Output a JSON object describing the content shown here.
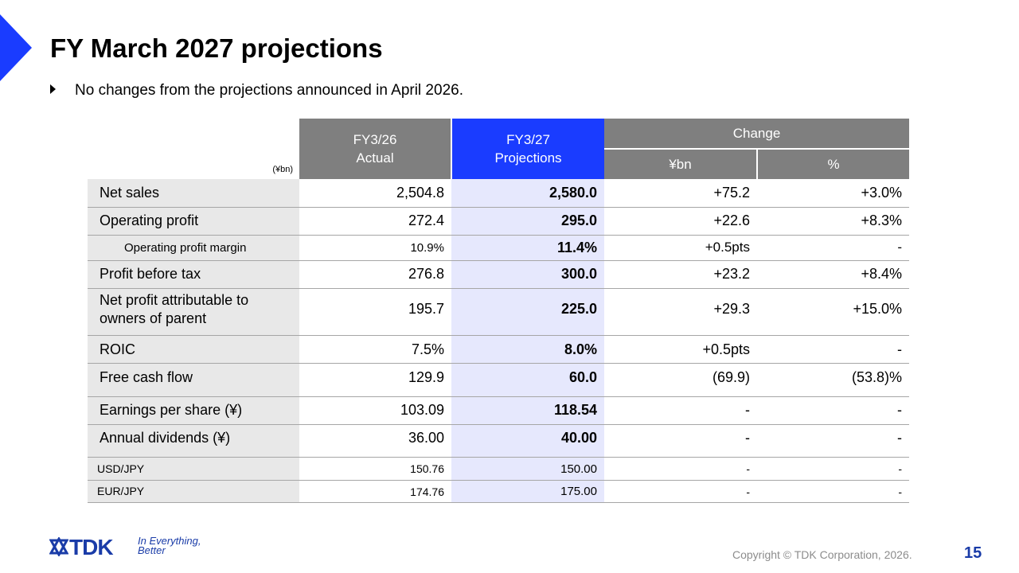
{
  "title": "FY March 2027 projections",
  "bullet": "No changes from the projections announced in April 2026.",
  "table": {
    "unit": "(¥bn)",
    "col_actual": [
      "FY3/26",
      "Actual"
    ],
    "col_proj": [
      "FY3/27",
      "Projections"
    ],
    "col_change": "Change",
    "col_change_bn": "¥bn",
    "col_change_pct": "%",
    "rows": [
      {
        "label": "Net sales",
        "actual": "2,504.8",
        "proj": "2,580.0",
        "chg": "+75.2",
        "pct": "+3.0%"
      },
      {
        "label": "Operating profit",
        "actual": "272.4",
        "proj": "295.0",
        "chg": "+22.6",
        "pct": "+8.3%"
      },
      {
        "label": "Operating profit margin",
        "actual": "10.9%",
        "proj": "11.4%",
        "chg": "+0.5pts",
        "pct": "-"
      },
      {
        "label": "Profit before tax",
        "actual": "276.8",
        "proj": "300.0",
        "chg": "+23.2",
        "pct": "+8.4%"
      },
      {
        "label": "Net profit attributable to owners of parent",
        "actual": "195.7",
        "proj": "225.0",
        "chg": "+29.3",
        "pct": "+15.0%"
      },
      {
        "label": "ROIC",
        "actual": "7.5%",
        "proj": "8.0%",
        "chg": "+0.5pts",
        "pct": "-"
      },
      {
        "label": "Free cash flow",
        "actual": "129.9",
        "proj": "60.0",
        "chg": "(69.9)",
        "pct": "(53.8)%"
      },
      {
        "label": "Earnings per share (¥)",
        "actual": "103.09",
        "proj": "118.54",
        "chg": "-",
        "pct": "-"
      },
      {
        "label": "Annual dividends (¥)",
        "actual": "36.00",
        "proj": "40.00",
        "chg": "-",
        "pct": "-"
      },
      {
        "label": "USD/JPY",
        "actual": "150.76",
        "proj": "150.00",
        "chg": "-",
        "pct": "-"
      },
      {
        "label": "EUR/JPY",
        "actual": "174.76",
        "proj": "175.00",
        "chg": "-",
        "pct": "-"
      }
    ]
  },
  "footer": {
    "logo_text": "TDK",
    "tagline_1": "In Everything,",
    "tagline_2": "Better",
    "copyright": "Copyright  © TDK Corporation, 2026.",
    "page_number": "15"
  },
  "colors": {
    "accent": "#1a3cff",
    "header_gray": "#7f7f7f",
    "proj_bg": "#e6e8fd",
    "label_bg": "#e8e8e8",
    "brand_blue": "#1a3ca8"
  }
}
